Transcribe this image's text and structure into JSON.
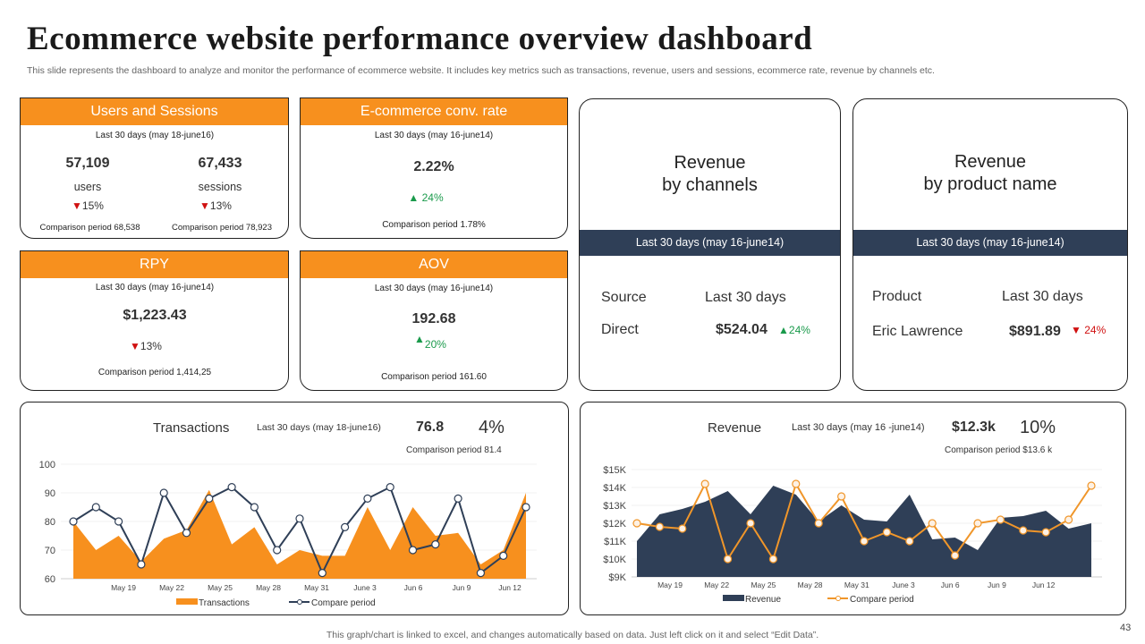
{
  "title": "Ecommerce website performance overview dashboard",
  "subtitle": "This slide represents the dashboard to analyze and monitor the performance of ecommerce website. It includes key metrics such as transactions, revenue, users and sessions, ecommerce rate, revenue by channels etc.",
  "users_sessions": {
    "header": "Users and Sessions",
    "period": "Last 30 days (may 18-june16)",
    "users_value": "57,109",
    "users_label": "users",
    "users_change": "15%",
    "users_comparison": "Comparison period 68,538",
    "sessions_value": "67,433",
    "sessions_label": "sessions",
    "sessions_change": "13%",
    "sessions_comparison": "Comparison period 78,923"
  },
  "conv_rate": {
    "header": "E-commerce conv. rate",
    "period": "Last 30 days (may 16-june14)",
    "value": "2.22%",
    "change": "24%",
    "comparison": "Comparison period 1.78%"
  },
  "rpy": {
    "header": "RPY",
    "period": "Last 30 days (may 16-june14)",
    "value": "$1,223.43",
    "change": "13%",
    "comparison": "Comparison period 1,414,25"
  },
  "aov": {
    "header": "AOV",
    "period": "Last 30 days (may 16-june14)",
    "value": "192.68",
    "change": "20%",
    "comparison": "Comparison period 161.60"
  },
  "rev_channels": {
    "title_line1": "Revenue",
    "title_line2": "by channels",
    "period": "Last 30 days (may 16-june14)",
    "col1": "Source",
    "col2": "Last 30 days",
    "row_name": "Direct",
    "row_value": "$524.04",
    "row_change": "24%"
  },
  "rev_product": {
    "title_line1": "Revenue",
    "title_line2": "by product name",
    "period": "Last 30 days (may 16-june14)",
    "col1": "Product",
    "col2": "Last 30 days",
    "row_name": "Eric Lawrence",
    "row_value": "$891.89",
    "row_change": "24%"
  },
  "transactions_header": {
    "title": "Transactions",
    "period": "Last 30 days (may 18-june16)",
    "value": "76.8",
    "change": "4%",
    "comparison": "Comparison period 81.4"
  },
  "revenue_header": {
    "title": "Revenue",
    "period": "Last 30 days (may 16 -june14)",
    "value": "$12.3k",
    "change": "10%",
    "comparison": "Comparison period $13.6 k"
  },
  "chart_data": [
    {
      "type": "area",
      "title": "Transactions",
      "ylim": [
        60,
        100
      ],
      "yticks": [
        "100",
        "90",
        "80",
        "70",
        "60"
      ],
      "xticks": [
        "May 19",
        "May 22",
        "May 25",
        "May 28",
        "May 31",
        "June 3",
        "Jun 6",
        "Jun 9",
        "Jun 12"
      ],
      "series": [
        {
          "name": "Transactions",
          "kind": "area",
          "color": "#f7901e",
          "values": [
            80,
            70,
            75,
            66,
            74,
            77,
            91,
            72,
            78,
            65,
            70,
            68,
            68,
            85,
            70,
            85,
            75,
            76,
            65,
            70,
            90
          ]
        },
        {
          "name": "Compare period",
          "kind": "line",
          "color": "#2f3f57",
          "values": [
            80,
            85,
            80,
            65,
            90,
            76,
            88,
            92,
            85,
            70,
            81,
            62,
            78,
            88,
            92,
            70,
            72,
            88,
            62,
            68,
            85
          ]
        }
      ]
    },
    {
      "type": "area",
      "title": "Revenue",
      "ylim": [
        9,
        15
      ],
      "yticks": [
        "$15K",
        "$14K",
        "$13K",
        "$12K",
        "$11K",
        "$10K",
        "$9K"
      ],
      "xticks": [
        "May 19",
        "May 22",
        "May 25",
        "May 28",
        "May 31",
        "June 3",
        "Jun 6",
        "Jun 9",
        "Jun 12"
      ],
      "series": [
        {
          "name": "Revenue",
          "kind": "area",
          "color": "#2f3f57",
          "values": [
            11,
            12.5,
            12.8,
            13.2,
            13.8,
            12.5,
            14.1,
            13.6,
            12.1,
            13,
            12.2,
            12.1,
            13.6,
            11.1,
            11.2,
            10.5,
            12.3,
            12.4,
            12.7,
            11.7,
            12
          ]
        },
        {
          "name": "Compare period",
          "kind": "line",
          "color": "#f0962a",
          "values": [
            12,
            11.8,
            11.7,
            14.2,
            10,
            12,
            10,
            14.2,
            12,
            13.5,
            11,
            11.5,
            11,
            12,
            10.2,
            12,
            12.2,
            11.6,
            11.5,
            12.2,
            14.1
          ]
        }
      ]
    }
  ],
  "footer": "This graph/chart is linked to excel, and changes automatically based on data. Just left click on it and select “Edit Data”.",
  "page_number": "43"
}
